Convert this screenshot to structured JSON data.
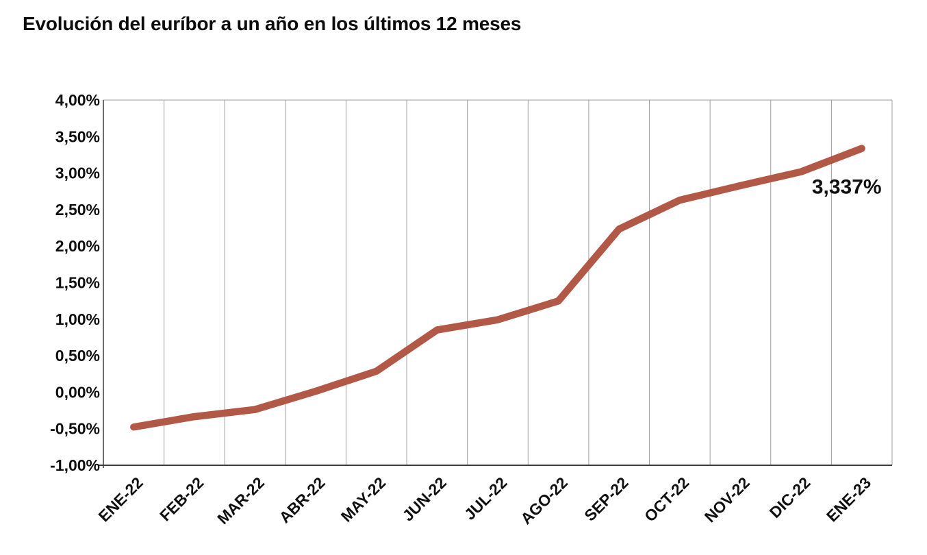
{
  "title": "Evolución del euríbor a un año en los últimos 12 meses",
  "chart_data": {
    "type": "line",
    "title": "Evolución del euríbor a un año en los últimos 12 meses",
    "categories": [
      "ENE-22",
      "FEB-22",
      "MAR-22",
      "ABR-22",
      "MAY-22",
      "JUN-22",
      "JUL-22",
      "AGO-22",
      "SEP-22",
      "OCT-22",
      "NOV-22",
      "DIC-22",
      "ENE-23"
    ],
    "series": [
      {
        "values": [
          -0.477,
          -0.335,
          -0.237,
          0.013,
          0.287,
          0.852,
          0.992,
          1.249,
          2.233,
          2.629,
          2.828,
          3.018,
          3.337
        ]
      }
    ],
    "ylim": [
      -1.0,
      4.0
    ],
    "ytick_step": 0.5,
    "ytick_labels": [
      "4,00%",
      "3,50%",
      "3,00%",
      "2,50%",
      "2,00%",
      "1,50%",
      "1,00%",
      "0,50%",
      "0,00%",
      "-0,50%",
      "-1,00%"
    ],
    "annotation": {
      "text": "3,337%",
      "x_index": 12,
      "value": 3.337
    },
    "grid": "vertical-only",
    "legend": "none",
    "xtick_rotation": -45,
    "colors": {
      "line": "#b25846",
      "gridline": "#9e9e9e",
      "axis": "#3c3c3c",
      "text": "#101010",
      "background": "#ffffff"
    }
  }
}
